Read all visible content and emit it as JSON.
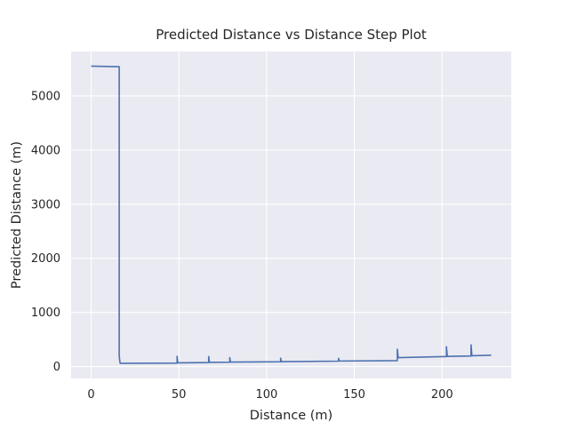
{
  "chart_data": {
    "type": "line",
    "style": "step",
    "title": "Predicted Distance vs Distance Step Plot",
    "xlabel": "Distance (m)",
    "ylabel": "Predicted Distance (m)",
    "xlim": [
      -11.4,
      239.4
    ],
    "ylim": [
      -220,
      5820
    ],
    "xticks": [
      0,
      50,
      100,
      150,
      200
    ],
    "yticks": [
      0,
      1000,
      2000,
      3000,
      4000,
      5000
    ],
    "grid": true,
    "legend": "none",
    "colors": {
      "background": "#eaeaf2",
      "grid": "#ffffff",
      "line": "#4c72b0",
      "text": "#262626"
    },
    "series": [
      {
        "points": [
          [
            0,
            5550
          ],
          [
            16,
            5540
          ],
          [
            16,
            200
          ],
          [
            16.5,
            60
          ],
          [
            49,
            65
          ],
          [
            49,
            190
          ],
          [
            49.4,
            68
          ],
          [
            67,
            75
          ],
          [
            67,
            185
          ],
          [
            67.4,
            78
          ],
          [
            79,
            80
          ],
          [
            79,
            165
          ],
          [
            79.4,
            82
          ],
          [
            108,
            88
          ],
          [
            108,
            155
          ],
          [
            108.4,
            90
          ],
          [
            141,
            100
          ],
          [
            141,
            150
          ],
          [
            141.4,
            102
          ],
          [
            174.5,
            110
          ],
          [
            174.5,
            320
          ],
          [
            175,
            165
          ],
          [
            202.5,
            185
          ],
          [
            202.5,
            365
          ],
          [
            203,
            188
          ],
          [
            216.5,
            195
          ],
          [
            216.5,
            400
          ],
          [
            217,
            200
          ],
          [
            228,
            210
          ]
        ]
      }
    ]
  }
}
